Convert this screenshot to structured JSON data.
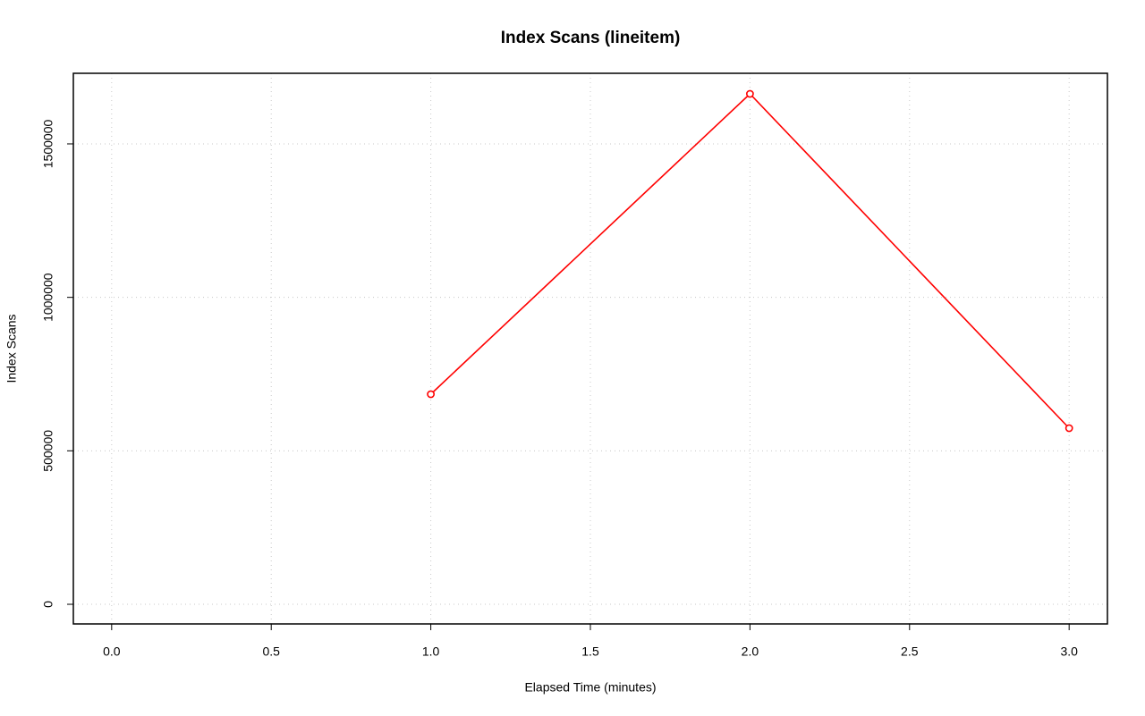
{
  "chart_data": {
    "type": "line",
    "title": "Index Scans (lineitem)",
    "x_label": "Elapsed Time (minutes)",
    "y_label": "Index Scans",
    "x": [
      1,
      2,
      3
    ],
    "series": [
      {
        "name": "lineitem",
        "color": "#ff0000",
        "values": [
          684500,
          1663000,
          573800
        ]
      }
    ],
    "xlim": [
      -0.12,
      3.12
    ],
    "xticks": [
      {
        "value": 0,
        "label": "0.0"
      },
      0.5,
      {
        "value": 1,
        "label": "1.0"
      },
      1.5,
      {
        "value": 2,
        "label": "2.0"
      },
      2.5,
      {
        "value": 3,
        "label": "3.0"
      }
    ],
    "ylim": [
      -64000,
      1730000
    ],
    "yticks": [
      0,
      500000,
      1000000,
      1500000
    ],
    "grid": true
  }
}
